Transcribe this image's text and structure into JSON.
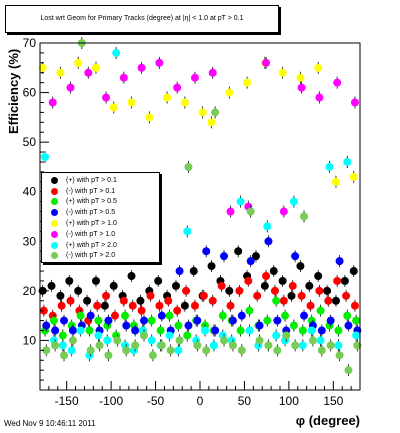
{
  "chart_data": {
    "type": "scatter",
    "title": "Lost wrt Geom for Primary Tracks (degree) at |η| < 1.0 at pT > 0.1",
    "xlabel": "φ (degree)",
    "ylabel": "Efficiency (%)",
    "xlim": [
      -180,
      180
    ],
    "ylim": [
      0,
      70
    ],
    "xticks": [
      -150,
      -100,
      -50,
      0,
      50,
      100,
      150
    ],
    "yticks": [
      10,
      20,
      30,
      40,
      50,
      60,
      70
    ],
    "grid": false,
    "legend_position": "middle-left",
    "timestamp": "Wed Nov  9 10:46:11 2011",
    "colors": {
      "black": "#000000",
      "red": "#ff0000",
      "green": "#00ee00",
      "blue": "#0000ff",
      "yellow": "#ffff00",
      "magenta": "#ff00ff",
      "cyan": "#00ffff",
      "olive": "#77cc55"
    },
    "series": [
      {
        "name": "(+) with pT > 0.1",
        "color": "#000000",
        "x": [
          -175,
          -165,
          -155,
          -145,
          -135,
          -125,
          -115,
          -105,
          -95,
          -85,
          -75,
          -65,
          -55,
          -45,
          -35,
          -25,
          -15,
          -5,
          5,
          15,
          25,
          35,
          45,
          55,
          65,
          75,
          85,
          95,
          105,
          115,
          125,
          135,
          145,
          155,
          165,
          175
        ],
        "y": [
          20,
          21,
          19,
          22,
          20,
          18,
          22,
          17,
          21,
          19,
          23,
          18,
          20,
          22,
          19,
          21,
          17,
          24,
          19,
          25,
          22,
          20,
          28,
          23,
          27,
          21,
          24,
          22,
          19,
          25,
          21,
          23,
          20,
          18,
          22,
          24
        ]
      },
      {
        "name": "(-) with pT > 0.1",
        "color": "#ff0000",
        "x": [
          -175,
          -165,
          -155,
          -145,
          -135,
          -125,
          -115,
          -105,
          -95,
          -85,
          -75,
          -65,
          -55,
          -45,
          -35,
          -25,
          -15,
          -5,
          5,
          15,
          25,
          35,
          45,
          55,
          65,
          75,
          85,
          95,
          105,
          115,
          125,
          135,
          145,
          155,
          165,
          175
        ],
        "y": [
          16,
          15,
          17,
          18,
          16,
          14,
          17,
          19,
          15,
          18,
          17,
          16,
          19,
          17,
          18,
          16,
          20,
          17,
          19,
          18,
          21,
          17,
          20,
          22,
          19,
          23,
          20,
          18,
          21,
          19,
          17,
          20,
          18,
          22,
          19,
          17
        ]
      },
      {
        "name": "(+) with pT > 0.5",
        "color": "#00ee00",
        "x": [
          -175,
          -165,
          -155,
          -145,
          -135,
          -125,
          -115,
          -105,
          -95,
          -85,
          -75,
          -65,
          -55,
          -45,
          -35,
          -25,
          -15,
          -5,
          5,
          15,
          25,
          35,
          45,
          55,
          65,
          75,
          85,
          95,
          105,
          115,
          125,
          135,
          145,
          155,
          165,
          175
        ],
        "y": [
          12,
          14,
          11,
          13,
          15,
          12,
          14,
          13,
          11,
          15,
          13,
          12,
          14,
          12,
          15,
          13,
          11,
          14,
          13,
          12,
          15,
          14,
          12,
          16,
          13,
          14,
          18,
          15,
          13,
          12,
          14,
          16,
          13,
          12,
          15,
          14
        ]
      },
      {
        "name": "(-) with pT > 0.5",
        "color": "#0000ff",
        "x": [
          -175,
          -165,
          -155,
          -145,
          -135,
          -125,
          -115,
          -105,
          -95,
          -85,
          -75,
          -65,
          -55,
          -45,
          -35,
          -25,
          -15,
          -5,
          5,
          15,
          25,
          35,
          45,
          55,
          65,
          75,
          85,
          95,
          105,
          115,
          125,
          135,
          145,
          155,
          165,
          175
        ],
        "y": [
          13,
          12,
          14,
          12,
          13,
          15,
          12,
          14,
          27,
          13,
          12,
          14,
          27,
          15,
          12,
          24,
          13,
          14,
          28,
          12,
          27,
          14,
          15,
          26,
          13,
          30,
          14,
          12,
          27,
          15,
          13,
          12,
          14,
          26,
          13,
          12
        ]
      },
      {
        "name": "(+) with pT > 1.0",
        "color": "#ffff00",
        "x": [
          -175,
          -155,
          -135,
          -115,
          -95,
          -75,
          -55,
          -35,
          -15,
          5,
          15,
          35,
          55,
          75,
          95,
          115,
          135,
          155,
          175
        ],
        "y": [
          65,
          64,
          66,
          65,
          57,
          58,
          55,
          59,
          58,
          56,
          54,
          60,
          62,
          66,
          64,
          63,
          65,
          42,
          43
        ]
      },
      {
        "name": "(-) with pT > 1.0",
        "color": "#ff00ff",
        "x": [
          -165,
          -145,
          -125,
          -105,
          -85,
          -65,
          -45,
          -25,
          -5,
          15,
          35,
          55,
          75,
          95,
          115,
          135,
          155,
          175
        ],
        "y": [
          58,
          61,
          64,
          59,
          63,
          65,
          66,
          61,
          63,
          64,
          36,
          37,
          66,
          36,
          61,
          59,
          62,
          58
        ]
      },
      {
        "name": "(+) with pT > 2.0",
        "color": "#00ffff",
        "x": [
          -175,
          -165,
          -155,
          -145,
          -135,
          -125,
          -115,
          -105,
          -95,
          -85,
          -75,
          -65,
          -55,
          -45,
          -35,
          -25,
          -15,
          -5,
          5,
          15,
          25,
          35,
          45,
          55,
          65,
          75,
          85,
          95,
          105,
          115,
          125,
          135,
          145,
          155,
          165,
          175
        ],
        "y": [
          47,
          10,
          9,
          8,
          12,
          7,
          11,
          10,
          68,
          9,
          8,
          12,
          10,
          9,
          11,
          8,
          32,
          10,
          12,
          9,
          11,
          10,
          38,
          12,
          9,
          33,
          11,
          10,
          38,
          9,
          12,
          10,
          45,
          9,
          46,
          11
        ]
      },
      {
        "name": "(-) with pT > 2.0",
        "color": "#77cc55",
        "x": [
          -175,
          -165,
          -155,
          -145,
          -135,
          -125,
          -115,
          -105,
          -95,
          -85,
          -75,
          -65,
          -55,
          -45,
          -35,
          -25,
          -15,
          -5,
          5,
          15,
          25,
          35,
          45,
          55,
          65,
          75,
          85,
          95,
          105,
          115,
          125,
          135,
          145,
          155,
          165,
          175
        ],
        "y": [
          8,
          9,
          7,
          10,
          70,
          8,
          9,
          7,
          10,
          8,
          9,
          11,
          7,
          9,
          8,
          10,
          45,
          9,
          8,
          56,
          10,
          9,
          8,
          36,
          10,
          9,
          8,
          11,
          9,
          35,
          10,
          8,
          9,
          7,
          4,
          9
        ]
      }
    ]
  }
}
